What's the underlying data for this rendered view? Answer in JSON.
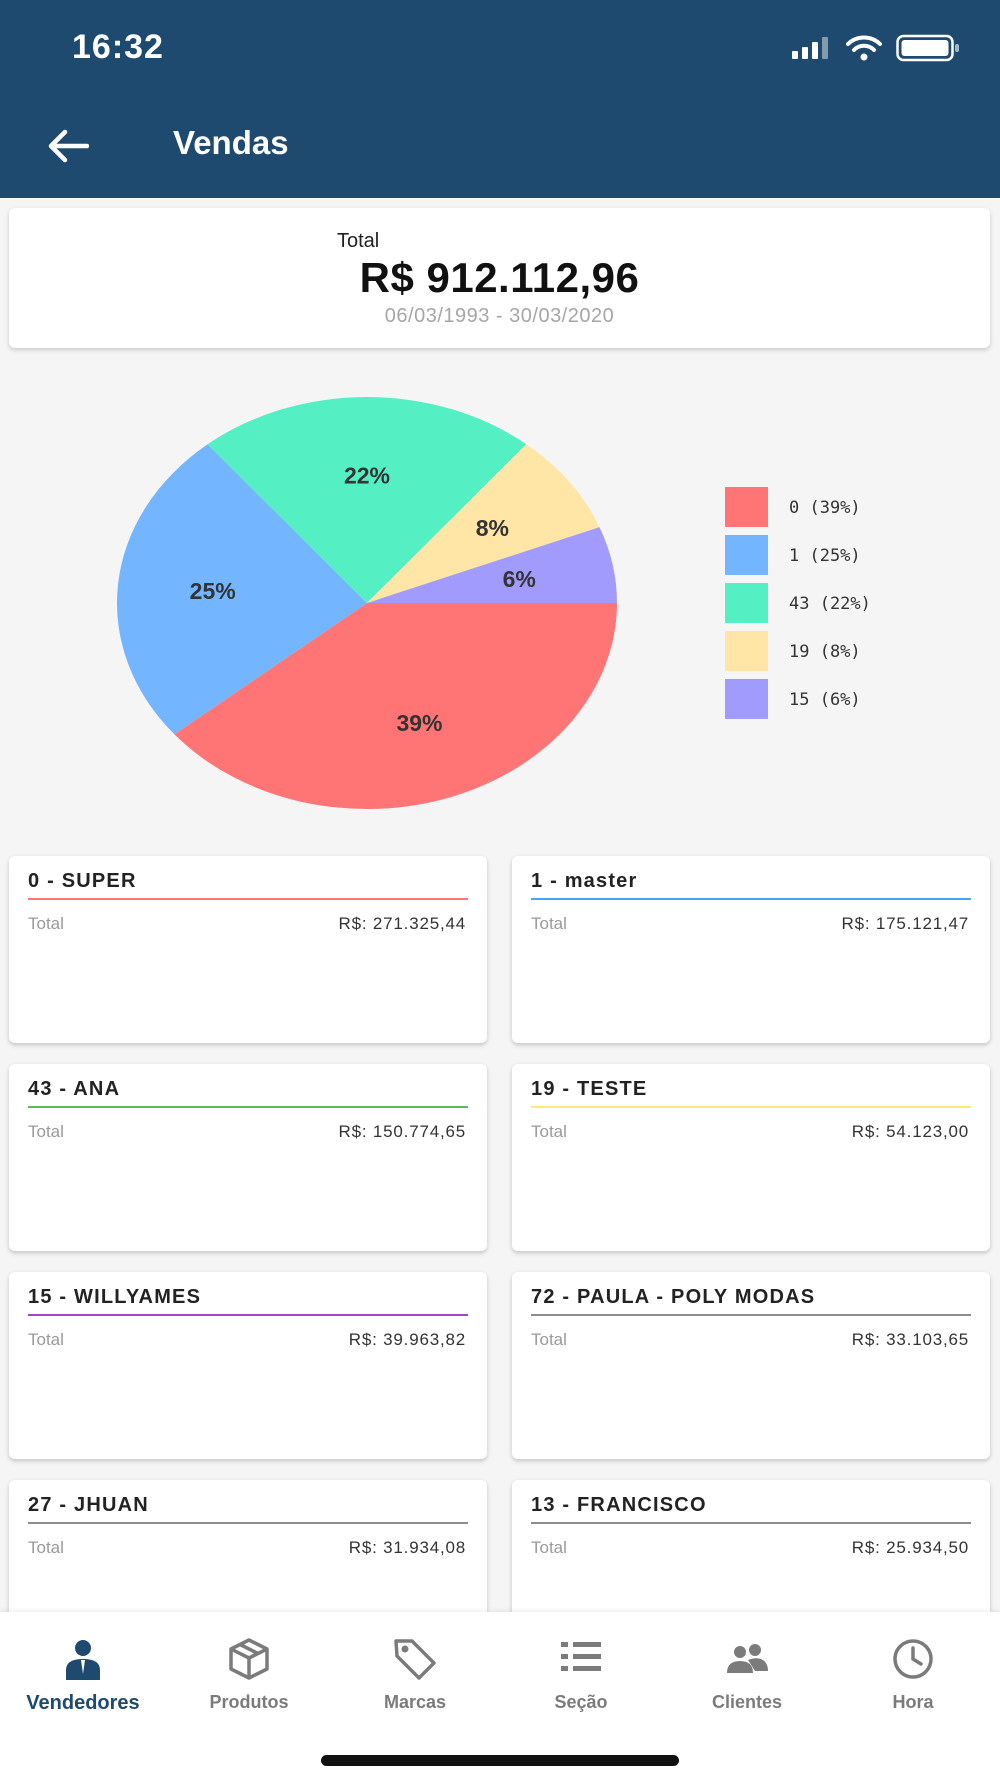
{
  "status_bar": {
    "time": "16:32"
  },
  "header": {
    "title": "Vendas"
  },
  "summary": {
    "label": "Total",
    "value": "R$ 912.112,96",
    "date_range": "06/03/1993 - 30/03/2020"
  },
  "chart_data": {
    "type": "pie",
    "slices": [
      {
        "label": "0",
        "value": 39,
        "color": "#ff7575"
      },
      {
        "label": "1",
        "value": 25,
        "color": "#73b6ff"
      },
      {
        "label": "43",
        "value": 22,
        "color": "#55efc4"
      },
      {
        "label": "19",
        "value": 8,
        "color": "#ffe6a6"
      },
      {
        "label": "15",
        "value": 6,
        "color": "#a29bfe"
      }
    ],
    "slice_labels": [
      "39%",
      "25%",
      "22%",
      "8%",
      "6%"
    ],
    "legend": [
      "0 (39%)",
      "1 (25%)",
      "43 (22%)",
      "19 (8%)",
      "15 (6%)"
    ],
    "legend_position": "right"
  },
  "sellers": [
    {
      "name": "0 - SUPER",
      "total_label": "Total",
      "total": "R$: 271.325,44",
      "color": "#ff7575"
    },
    {
      "name": "1 - master",
      "total_label": "Total",
      "total": "R$: 175.121,47",
      "color": "#4aa3f0"
    },
    {
      "name": "43 - ANA",
      "total_label": "Total",
      "total": "R$: 150.774,65",
      "color": "#5cb85c"
    },
    {
      "name": "19 - TESTE",
      "total_label": "Total",
      "total": "R$: 54.123,00",
      "color": "#ffe97a"
    },
    {
      "name": "15 - WILLYAMES",
      "total_label": "Total",
      "total": "R$: 39.963,82",
      "color": "#a646c2"
    },
    {
      "name": "72 - PAULA - POLY MODAS",
      "total_label": "Total",
      "total": "R$: 33.103,65",
      "color": "#8c8c8c"
    },
    {
      "name": "27 - JHUAN",
      "total_label": "Total",
      "total": "R$: 31.934,08",
      "color": "#8c8c8c"
    },
    {
      "name": "13 - FRANCISCO",
      "total_label": "Total",
      "total": "R$: 25.934,50",
      "color": "#8c8c8c"
    }
  ],
  "bottom_nav": {
    "items": [
      {
        "label": "Vendedores",
        "icon": "person-icon",
        "active": true
      },
      {
        "label": "Produtos",
        "icon": "box-icon",
        "active": false
      },
      {
        "label": "Marcas",
        "icon": "tag-icon",
        "active": false
      },
      {
        "label": "Seção",
        "icon": "list-icon",
        "active": false
      },
      {
        "label": "Clientes",
        "icon": "people-icon",
        "active": false
      },
      {
        "label": "Hora",
        "icon": "clock-icon",
        "active": false
      }
    ]
  },
  "colors": {
    "primary": "#1d4a6e",
    "inactive": "#7b7b7b"
  }
}
